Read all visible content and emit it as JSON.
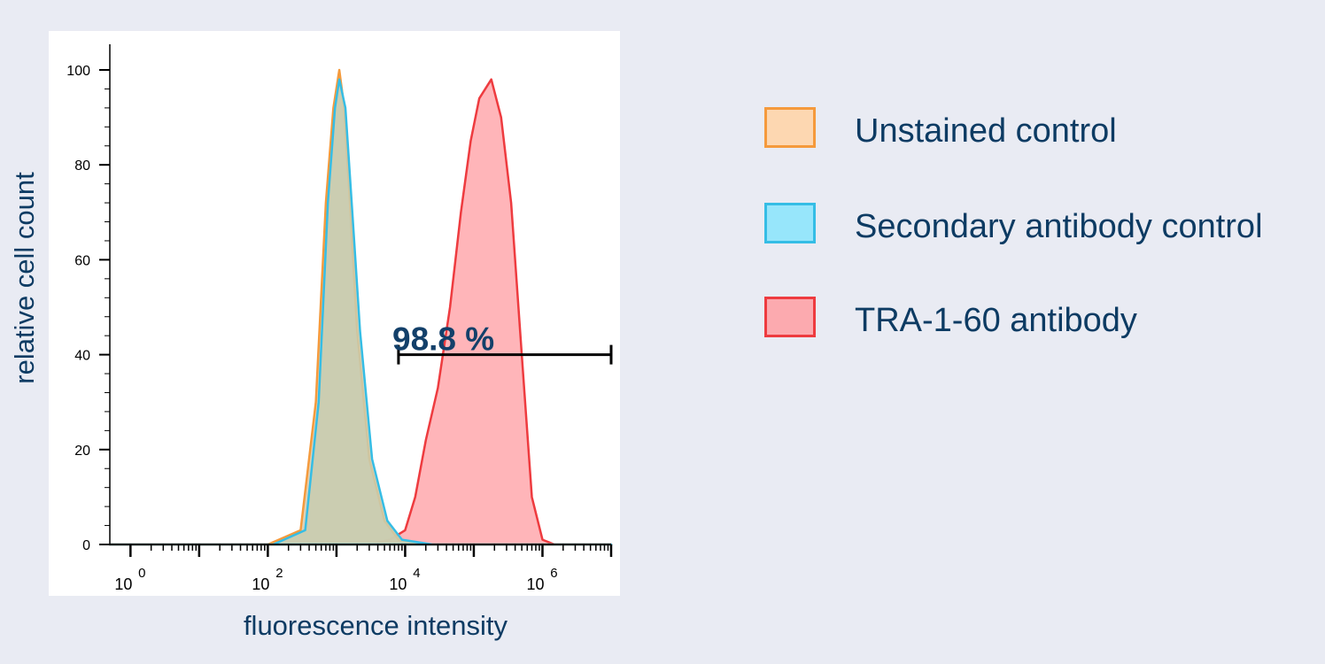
{
  "chart_data": {
    "type": "area",
    "title": "",
    "xlabel": "fluorescence intensity",
    "ylabel": "relative cell count",
    "x_scale": "log10",
    "xlim": [
      0.5,
      10000000
    ],
    "ylim": [
      0,
      100
    ],
    "x_ticks": [
      {
        "base": "10",
        "exp": "0"
      },
      {
        "base": "10",
        "exp": "2"
      },
      {
        "base": "10",
        "exp": "4"
      },
      {
        "base": "10",
        "exp": "6"
      }
    ],
    "y_ticks": [
      "0",
      "20",
      "40",
      "60",
      "80",
      "100"
    ],
    "gate": {
      "label": "98.8 %",
      "x_start": 8000,
      "x_end": 10000000,
      "y": 40
    },
    "legend_position": "right",
    "series": [
      {
        "name": "Unstained control",
        "fill": "#d8c9a9",
        "stroke": "#f59a3c",
        "swatch_fill": "#fdd7b1",
        "points": [
          [
            0.5,
            0
          ],
          [
            100,
            0
          ],
          [
            300,
            3
          ],
          [
            500,
            30
          ],
          [
            700,
            72
          ],
          [
            900,
            92
          ],
          [
            1100,
            100
          ],
          [
            1300,
            92
          ],
          [
            1600,
            70
          ],
          [
            2000,
            45
          ],
          [
            3000,
            18
          ],
          [
            5000,
            5
          ],
          [
            8000,
            1
          ],
          [
            20000,
            0
          ],
          [
            10000000,
            0
          ]
        ]
      },
      {
        "name": "Secondary antibody control",
        "fill": "#c8ccb0",
        "stroke": "#35bde5",
        "swatch_fill": "#97e6fb",
        "points": [
          [
            0.5,
            0
          ],
          [
            120,
            0
          ],
          [
            350,
            3
          ],
          [
            550,
            30
          ],
          [
            750,
            72
          ],
          [
            950,
            92
          ],
          [
            1100,
            98
          ],
          [
            1350,
            92
          ],
          [
            1700,
            70
          ],
          [
            2200,
            45
          ],
          [
            3300,
            18
          ],
          [
            5500,
            5
          ],
          [
            9000,
            1
          ],
          [
            25000,
            0
          ],
          [
            10000000,
            0
          ]
        ]
      },
      {
        "name": "TRA-1-60 antibody",
        "fill": "#ffa8ad",
        "stroke": "#ee3b3f",
        "swatch_fill": "#fcaaaf",
        "points": [
          [
            0.5,
            0
          ],
          [
            3000,
            0
          ],
          [
            6000,
            1
          ],
          [
            10000,
            3
          ],
          [
            14000,
            10
          ],
          [
            20000,
            22
          ],
          [
            30000,
            33
          ],
          [
            45000,
            50
          ],
          [
            65000,
            70
          ],
          [
            90000,
            85
          ],
          [
            120000,
            94
          ],
          [
            180000,
            98
          ],
          [
            250000,
            90
          ],
          [
            350000,
            72
          ],
          [
            500000,
            40
          ],
          [
            700000,
            10
          ],
          [
            1000000,
            1
          ],
          [
            1500000,
            0
          ],
          [
            10000000,
            0
          ]
        ]
      }
    ]
  }
}
